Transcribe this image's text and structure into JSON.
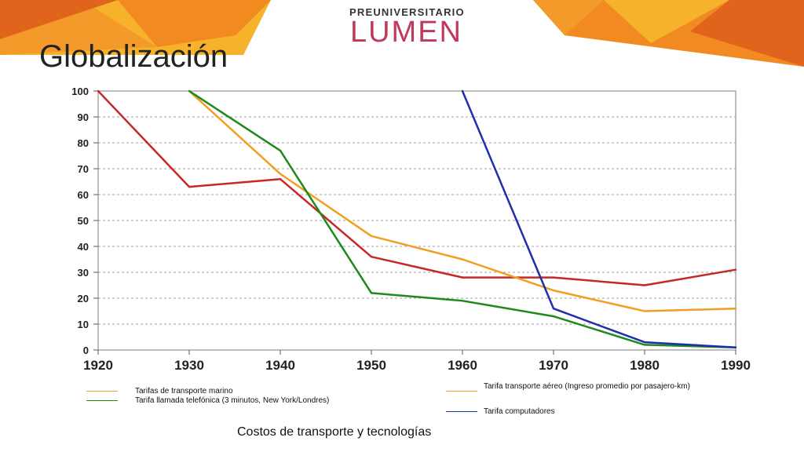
{
  "page": {
    "title": "Globalización",
    "caption": "Costos de transporte y tecnologías"
  },
  "brand": {
    "top": "PREUNIVERSITARIO",
    "main": "LUMEN",
    "color": "#c0395a"
  },
  "decor_colors": {
    "orange": "#f18a21",
    "dark_orange": "#e0641c",
    "yellow": "#f7b22c"
  },
  "chart_data": {
    "type": "line",
    "x": [
      1920,
      1930,
      1940,
      1950,
      1960,
      1970,
      1980,
      1990
    ],
    "xlim": [
      1920,
      1990
    ],
    "ylim": [
      0,
      100
    ],
    "yticks": [
      0,
      10,
      20,
      30,
      40,
      50,
      60,
      70,
      80,
      90,
      100
    ],
    "grid": "horizontal-dashed",
    "series": [
      {
        "name": "Tarifas de transporte  marino",
        "color": "#c62828",
        "points": [
          [
            1920,
            100
          ],
          [
            1930,
            63
          ],
          [
            1940,
            66
          ],
          [
            1950,
            36
          ],
          [
            1960,
            28
          ],
          [
            1970,
            28
          ],
          [
            1980,
            25
          ],
          [
            1990,
            31
          ]
        ]
      },
      {
        "name": "Tarifa transporte aéreo (Ingreso promedio por pasajero-km)",
        "color": "#f0a020",
        "points": [
          [
            1930,
            100
          ],
          [
            1940,
            68
          ],
          [
            1950,
            44
          ],
          [
            1960,
            35
          ],
          [
            1970,
            23
          ],
          [
            1980,
            15
          ],
          [
            1990,
            16
          ]
        ]
      },
      {
        "name": "Tarifa llamada telefónica (3 minutos, New York/Londres)",
        "color": "#1e8a1e",
        "points": [
          [
            1930,
            100
          ],
          [
            1940,
            77
          ],
          [
            1950,
            22
          ],
          [
            1960,
            19
          ],
          [
            1970,
            13
          ],
          [
            1980,
            2
          ],
          [
            1990,
            1
          ]
        ]
      },
      {
        "name": "Tarifa computadores",
        "color": "#1f2fa8",
        "points": [
          [
            1960,
            100
          ],
          [
            1970,
            16
          ],
          [
            1980,
            3
          ],
          [
            1990,
            1
          ]
        ]
      }
    ]
  }
}
